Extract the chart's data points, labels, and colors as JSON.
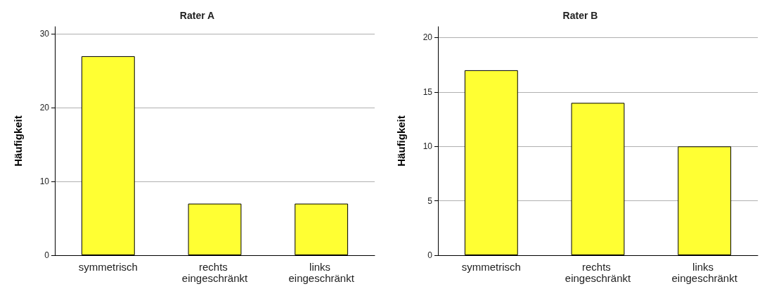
{
  "chart_data": [
    {
      "type": "bar",
      "title": "Rater A",
      "ylabel": "Häufigkeit",
      "categories": [
        "symmetrisch",
        "rechts eingeschränkt",
        "links eingeschränkt"
      ],
      "values": [
        27,
        7,
        7
      ],
      "color": "#ffff33",
      "ylim": [
        0,
        31
      ],
      "yticks": [
        0,
        10,
        20,
        30
      ],
      "grid": "y"
    },
    {
      "type": "bar",
      "title": "Rater B",
      "ylabel": "Häufigkeit",
      "categories": [
        "symmetrisch",
        "rechts eingeschränkt",
        "links eingeschränkt"
      ],
      "values": [
        17,
        14,
        10
      ],
      "color": "#ffff33",
      "ylim": [
        0,
        21
      ],
      "yticks": [
        0,
        5,
        10,
        15,
        20
      ],
      "grid": "y"
    }
  ]
}
